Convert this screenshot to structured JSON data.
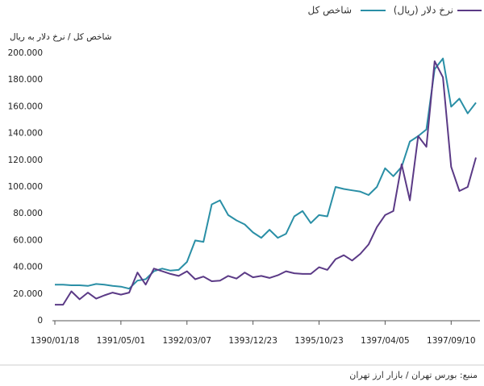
{
  "chart_data": {
    "type": "line",
    "y_label": "شاخص کل / نرخ دلار به ریال",
    "source": "منبع: بورس تهران / بازار ارز تهران",
    "categories": [
      "1390/01/18",
      null,
      null,
      null,
      null,
      null,
      null,
      null,
      "1391/05/01",
      null,
      null,
      null,
      null,
      null,
      null,
      null,
      "1392/03/07",
      null,
      null,
      null,
      null,
      null,
      null,
      null,
      "1393/12/23",
      null,
      null,
      null,
      null,
      null,
      null,
      null,
      "1395/10/23",
      null,
      null,
      null,
      null,
      null,
      null,
      null,
      "1397/04/05",
      null,
      null,
      null,
      null,
      null,
      null,
      null,
      "1397/09/10",
      null,
      null,
      null
    ],
    "series": [
      {
        "name": "شاخص کل",
        "color": "#2a8fa6",
        "values": [
          27000,
          27000,
          26500,
          26500,
          26000,
          27500,
          27000,
          26000,
          25500,
          24000,
          30000,
          31000,
          37000,
          39000,
          37500,
          38000,
          44000,
          60000,
          59000,
          87000,
          90000,
          79000,
          75000,
          72000,
          66000,
          62000,
          68000,
          62000,
          65000,
          78000,
          82000,
          73000,
          79000,
          78000,
          100000,
          98500,
          97500,
          96500,
          94000,
          100000,
          114000,
          108000,
          115000,
          134000,
          138000,
          143000,
          188000,
          196000,
          160000,
          166000,
          155000,
          163000
        ]
      },
      {
        "name": "نرخ دلار (ریال)",
        "color": "#5b3a86",
        "values": [
          12000,
          12000,
          22000,
          16000,
          21000,
          16500,
          19000,
          21000,
          19500,
          21000,
          36000,
          27000,
          39000,
          37000,
          35000,
          33500,
          37000,
          31000,
          33000,
          29500,
          30000,
          33500,
          31500,
          36000,
          32500,
          33500,
          32000,
          34000,
          37000,
          35500,
          35000,
          35000,
          40000,
          38000,
          46000,
          49000,
          45000,
          50000,
          57000,
          70000,
          79000,
          82000,
          117000,
          90000,
          138000,
          130000,
          194000,
          182000,
          115000,
          97000,
          100000,
          122000
        ]
      }
    ],
    "ylim": [
      0,
      200000
    ],
    "yticks": [
      0,
      {
        "value": 20000,
        "label": "20.000"
      },
      {
        "value": 40000,
        "label": "40.000"
      },
      {
        "value": 60000,
        "label": "60.000"
      },
      {
        "value": 80000,
        "label": "80.000"
      },
      {
        "value": 100000,
        "label": "100.000"
      },
      {
        "value": 120000,
        "label": "120.000"
      },
      {
        "value": 140000,
        "label": "140.000"
      },
      {
        "value": 160000,
        "label": "160.000"
      },
      {
        "value": 180000,
        "label": "180.000"
      },
      {
        "value": 200000,
        "label": "200.000"
      }
    ],
    "grid": false
  }
}
